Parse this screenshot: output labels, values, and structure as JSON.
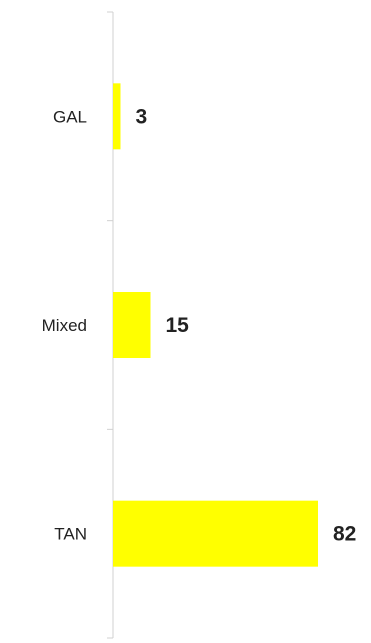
{
  "chart_data": {
    "type": "bar",
    "orientation": "horizontal",
    "categories": [
      "GAL",
      "Mixed",
      "TAN"
    ],
    "values": [
      3,
      15,
      82
    ],
    "data_labels": [
      "3",
      "15",
      "82"
    ],
    "title": "",
    "xlabel": "",
    "ylabel": "",
    "xlim": [
      0,
      100
    ],
    "grid": false,
    "legend": "none",
    "bar_color": "#ffff00"
  }
}
